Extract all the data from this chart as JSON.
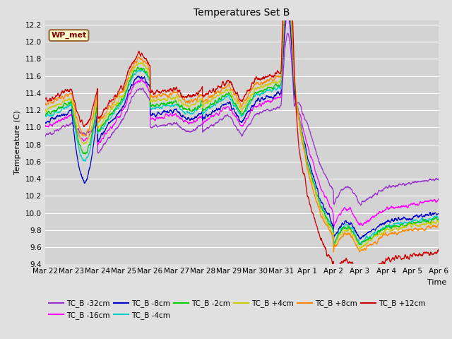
{
  "title": "Temperatures Set B",
  "xlabel": "Time",
  "ylabel": "Temperature (C)",
  "ylim": [
    9.4,
    12.25
  ],
  "background_color": "#e0e0e0",
  "plot_bg_color": "#d3d3d3",
  "grid_color": "#ffffff",
  "legend_label": "WP_met",
  "legend_box_color": "#ffffcc",
  "legend_box_edge": "#996633",
  "legend_text_color": "#800000",
  "series": [
    {
      "label": "TC_B -32cm",
      "color": "#9933cc"
    },
    {
      "label": "TC_B -16cm",
      "color": "#ff00ff"
    },
    {
      "label": "TC_B -8cm",
      "color": "#0000cc"
    },
    {
      "label": "TC_B -4cm",
      "color": "#00cccc"
    },
    {
      "label": "TC_B -2cm",
      "color": "#00cc00"
    },
    {
      "label": "TC_B +4cm",
      "color": "#cccc00"
    },
    {
      "label": "TC_B +8cm",
      "color": "#ff8800"
    },
    {
      "label": "TC_B +12cm",
      "color": "#cc0000"
    }
  ],
  "xtick_labels": [
    "Mar 22",
    "Mar 23",
    "Mar 24",
    "Mar 25",
    "Mar 26",
    "Mar 27",
    "Mar 28",
    "Mar 29",
    "Mar 30",
    "Mar 31",
    "Apr 1",
    "Apr 2",
    "Apr 3",
    "Apr 4",
    "Apr 5",
    "Apr 6"
  ],
  "n_points": 2000
}
